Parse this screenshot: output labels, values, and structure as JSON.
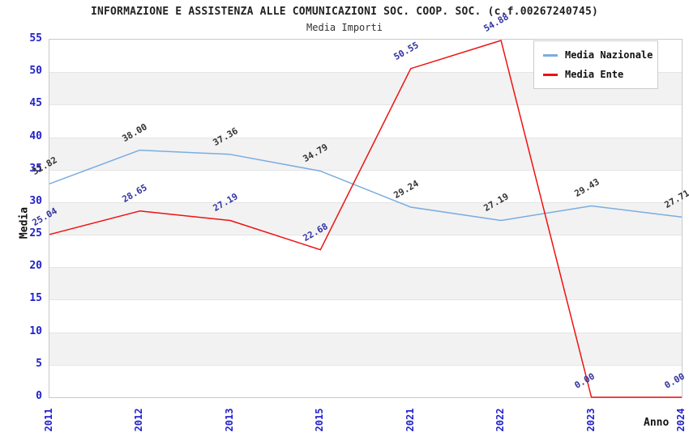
{
  "title": "INFORMAZIONE E ASSISTENZA ALLE COMUNICAZIONI SOC. COOP. SOC. (c.f.00267240745)",
  "subtitle": "Media Importi",
  "axes": {
    "y_title": "Media",
    "x_title": "Anno"
  },
  "chart_data": {
    "type": "line",
    "title": "INFORMAZIONE E ASSISTENZA ALLE COMUNICAZIONI SOC. COOP. SOC. (c.f.00267240745)",
    "subtitle": "Media Importi",
    "xlabel": "Anno",
    "ylabel": "Media",
    "categories": [
      "2011",
      "2012",
      "2013",
      "2015",
      "2021",
      "2022",
      "2023",
      "2024"
    ],
    "series": [
      {
        "name": "Media Nazionale",
        "color": "#7aade0",
        "label_color": "#333333",
        "values": [
          32.82,
          38.0,
          37.36,
          34.79,
          29.24,
          27.19,
          29.43,
          27.71
        ]
      },
      {
        "name": "Media Ente",
        "color": "#ee1111",
        "label_color": "#3333a3",
        "values": [
          25.04,
          28.65,
          27.19,
          22.68,
          50.55,
          54.88,
          0.0,
          0.0
        ]
      }
    ],
    "ylim": [
      0,
      55
    ],
    "yticks": [
      0,
      5,
      10,
      15,
      20,
      25,
      30,
      35,
      40,
      45,
      50,
      55
    ],
    "grid": "horizontal-bands",
    "band_colors": [
      "#ffffff",
      "#f2f2f2"
    ],
    "gridline_color": "#e5e5e5",
    "tick_color": "#2121cc",
    "legend_position": "top-right",
    "data_labels_decimals": 2
  }
}
